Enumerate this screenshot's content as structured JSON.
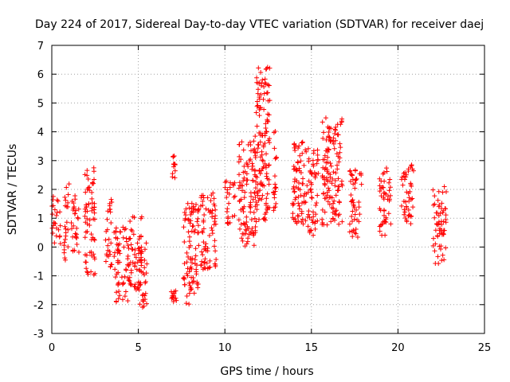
{
  "chart_data": {
    "type": "scatter",
    "title": "Day 224 of 2017, Sidereal Day-to-day VTEC variation (SDTVAR) for receiver daej",
    "xlabel": "GPS time / hours",
    "ylabel": "SDTVAR / TECUs",
    "xlim": [
      0,
      25
    ],
    "ylim": [
      -3,
      7
    ],
    "xticks": [
      0,
      5,
      10,
      15,
      20,
      25
    ],
    "yticks": [
      -3,
      -2,
      -1,
      0,
      1,
      2,
      3,
      4,
      5,
      6,
      7
    ],
    "grid": true,
    "marker": "+",
    "color": "#ff0000",
    "clusters": [
      {
        "x": [
          0.0,
          0.5
        ],
        "y": [
          0.0,
          1.8
        ]
      },
      {
        "x": [
          0.7,
          1.0
        ],
        "y": [
          -0.5,
          2.2
        ]
      },
      {
        "x": [
          1.1,
          1.6
        ],
        "y": [
          -0.2,
          1.8
        ]
      },
      {
        "x": [
          1.9,
          2.5
        ],
        "y": [
          -1.0,
          2.9
        ]
      },
      {
        "x": [
          3.1,
          3.5
        ],
        "y": [
          -0.7,
          1.7
        ]
      },
      {
        "x": [
          3.6,
          4.4
        ],
        "y": [
          -2.0,
          0.7
        ]
      },
      {
        "x": [
          4.4,
          5.2
        ],
        "y": [
          -1.5,
          1.1
        ]
      },
      {
        "x": [
          5.0,
          5.5
        ],
        "y": [
          -2.1,
          0.4
        ]
      },
      {
        "x": [
          6.9,
          7.2
        ],
        "y": [
          2.4,
          3.2
        ]
      },
      {
        "x": [
          6.9,
          7.2
        ],
        "y": [
          -1.9,
          -1.5
        ]
      },
      {
        "x": [
          7.6,
          8.5
        ],
        "y": [
          -2.0,
          1.6
        ]
      },
      {
        "x": [
          8.6,
          9.5
        ],
        "y": [
          -0.8,
          1.9
        ]
      },
      {
        "x": [
          10.0,
          10.6
        ],
        "y": [
          0.8,
          2.3
        ]
      },
      {
        "x": [
          10.8,
          11.8
        ],
        "y": [
          0.0,
          3.9
        ]
      },
      {
        "x": [
          11.8,
          12.6
        ],
        "y": [
          0.8,
          6.3
        ]
      },
      {
        "x": [
          12.8,
          13.0
        ],
        "y": [
          0.8,
          4.3
        ]
      },
      {
        "x": [
          13.9,
          14.8
        ],
        "y": [
          0.8,
          3.8
        ]
      },
      {
        "x": [
          14.8,
          15.4
        ],
        "y": [
          0.4,
          3.5
        ]
      },
      {
        "x": [
          15.6,
          16.8
        ],
        "y": [
          0.7,
          4.5
        ]
      },
      {
        "x": [
          17.2,
          17.9
        ],
        "y": [
          0.3,
          2.7
        ]
      },
      {
        "x": [
          18.9,
          19.6
        ],
        "y": [
          0.4,
          2.8
        ]
      },
      {
        "x": [
          20.2,
          20.9
        ],
        "y": [
          0.6,
          2.9
        ]
      },
      {
        "x": [
          22.0,
          22.8
        ],
        "y": [
          -0.6,
          2.1
        ]
      }
    ]
  }
}
